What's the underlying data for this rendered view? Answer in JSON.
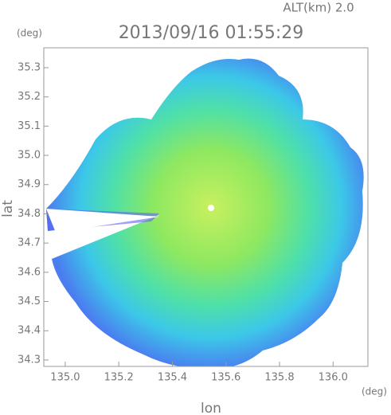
{
  "chart_data": {
    "type": "radar-map",
    "title": "2013/09/16 01:55:29",
    "annotation": "ALT(km) 2.0",
    "x_label": "lon",
    "y_label": "lat",
    "x_unit": "(deg)",
    "y_unit": "(deg)",
    "xlim": [
      134.92,
      136.13
    ],
    "ylim": [
      34.278,
      35.368
    ],
    "xticks": [
      {
        "value": 135.0,
        "label": "135.0"
      },
      135.2,
      135.4,
      135.6,
      135.8,
      {
        "value": 136.0,
        "label": "136.0"
      }
    ],
    "yticks": [
      34.3,
      34.4,
      34.5,
      34.6,
      34.7,
      34.8,
      34.9,
      {
        "value": 35.0,
        "label": "35.0"
      },
      35.1,
      35.2,
      35.3
    ]
  }
}
